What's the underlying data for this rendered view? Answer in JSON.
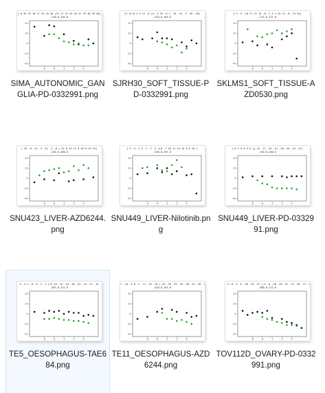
{
  "colors": {
    "black_dot": "#111111",
    "green_dot": "#2ca02c",
    "axis": "#333333",
    "grid_text": "#555555"
  },
  "files": [
    {
      "name": "SIMA_AUTONOMIC_GANGLIA-PD-0332991.png",
      "header": "[ 0 35 15 10 17 23 24 40 |31 27 22 32 43 47 35 40 35 40]",
      "subheader": "-220.0,192.0",
      "black": [
        [
          -10,
          33
        ],
        [
          -8,
          15
        ],
        [
          -7,
          36
        ],
        [
          -6,
          34
        ],
        [
          -4,
          18
        ],
        [
          -2,
          5
        ],
        [
          -1,
          -2
        ],
        [
          1,
          8
        ],
        [
          2,
          0
        ]
      ],
      "green": [
        [
          -7,
          18
        ],
        [
          -6,
          18
        ],
        [
          -5,
          10
        ],
        [
          -4,
          4
        ],
        [
          -3,
          2
        ],
        [
          -2,
          -2
        ],
        [
          -1,
          0
        ],
        [
          0,
          -4
        ],
        [
          1,
          -4
        ]
      ]
    },
    {
      "name": "SJRH30_SOFT_TISSUE-PD-0332991.png",
      "header": "[3 15 8 4 3 11 -8 ]4 -3 23 -8 1 -16 -31 -3 -35 -20]",
      "subheader": "-220.0,183.0",
      "black": [
        [
          -10,
          12
        ],
        [
          -9,
          8
        ],
        [
          -7,
          10
        ],
        [
          -6,
          22
        ],
        [
          -5,
          10
        ],
        [
          -4,
          10
        ],
        [
          -3,
          8
        ],
        [
          -1,
          2
        ],
        [
          0,
          -6
        ],
        [
          1,
          6
        ],
        [
          2,
          0
        ]
      ],
      "green": [
        [
          -6,
          4
        ],
        [
          -5,
          2
        ],
        [
          -4,
          -2
        ],
        [
          -3,
          -8
        ],
        [
          -2,
          -4
        ],
        [
          -1,
          -18
        ],
        [
          0,
          -10
        ]
      ]
    },
    {
      "name": "SKLMS1_SOFT_TISSUE-AZD0530.png",
      "header": "[ 3 -9 -10 27 11 ]5 -8 -7 5 3 15 12 -8 -13 31]",
      "subheader": "-175.0,177.0",
      "black": [
        [
          -10,
          2
        ],
        [
          -8,
          4
        ],
        [
          -7,
          -4
        ],
        [
          -5,
          -2
        ],
        [
          -4,
          -8
        ],
        [
          -2,
          8
        ],
        [
          -1,
          14
        ],
        [
          0,
          20
        ],
        [
          1,
          -30
        ]
      ],
      "green": [
        [
          -9,
          28
        ],
        [
          -7,
          14
        ],
        [
          -6,
          12
        ],
        [
          -5,
          18
        ],
        [
          -4,
          20
        ],
        [
          -3,
          26
        ],
        [
          -2,
          20
        ],
        [
          -1,
          24
        ],
        [
          0,
          28
        ]
      ]
    },
    {
      "name": "SNU423_LIVER-AZD6244.png",
      "header": "[ 22 -6 -12 -3 -51 -3 -8 |-12 0 13 11 0 16 9 13 15]",
      "subheader": "-220.0,180.0",
      "black": [
        [
          -10,
          -8
        ],
        [
          -8,
          -2
        ],
        [
          -6,
          -4
        ],
        [
          -5,
          10
        ],
        [
          -3,
          -6
        ],
        [
          -2,
          -4
        ],
        [
          0,
          -2
        ],
        [
          2,
          2
        ]
      ],
      "green": [
        [
          -9,
          6
        ],
        [
          -8,
          14
        ],
        [
          -7,
          16
        ],
        [
          -6,
          18
        ],
        [
          -5,
          20
        ],
        [
          -4,
          12
        ],
        [
          -3,
          14
        ],
        [
          -2,
          24
        ],
        [
          -1,
          16
        ],
        [
          0,
          26
        ],
        [
          1,
          20
        ]
      ]
    },
    {
      "name": "SNU449_LIVER-Nilotinib.png",
      "header": "[ 9 -4 -1 3 -7 -7 -3 |10 -7 10 11 15 15 9 6 16 ]",
      "subheader": "-220.0,187.0",
      "black": [
        [
          -10,
          8
        ],
        [
          -8,
          10
        ],
        [
          -6,
          20
        ],
        [
          -5,
          12
        ],
        [
          -4,
          20
        ],
        [
          -3,
          8
        ],
        [
          -2,
          14
        ],
        [
          0,
          6
        ],
        [
          1,
          8
        ],
        [
          2,
          -30
        ]
      ],
      "green": [
        [
          -9,
          20
        ],
        [
          -8,
          22
        ],
        [
          -6,
          26
        ],
        [
          -5,
          16
        ],
        [
          -4,
          14
        ],
        [
          -3,
          26
        ],
        [
          -2,
          36
        ],
        [
          -1,
          22
        ]
      ]
    },
    {
      "name": "SNU449_LIVER-PD-0332991.png",
      "header": "[ 8 2 5 0 3 0 ]{-12 -17 -24 -21 -26 -24 -25 -27]",
      "subheader": "-220.0,180.0",
      "black": [
        [
          -10,
          2
        ],
        [
          -8,
          4
        ],
        [
          -6,
          4
        ],
        [
          -4,
          4
        ],
        [
          -2,
          4
        ],
        [
          -1,
          2
        ],
        [
          0,
          4
        ],
        [
          1,
          4
        ],
        [
          2,
          4
        ]
      ],
      "green": [
        [
          -7,
          -4
        ],
        [
          -6,
          -10
        ],
        [
          -5,
          -12
        ],
        [
          -4,
          -18
        ],
        [
          -3,
          -20
        ],
        [
          -2,
          -20
        ],
        [
          -1,
          -20
        ],
        [
          0,
          -20
        ],
        [
          1,
          -22
        ]
      ]
    },
    {
      "name": "TE5_OESOPHAGUS-TAE684.png",
      "header": "[ 0 -3 -2 1 -8 -9 -3 -2 |13 20 -14 -14 -18 -22 -13 -17 -15 -15]",
      "subheader": "-387.0,121.0",
      "black": [
        [
          -10,
          4
        ],
        [
          -8,
          2
        ],
        [
          -7,
          6
        ],
        [
          -6,
          4
        ],
        [
          -5,
          6
        ],
        [
          -4,
          0
        ],
        [
          -3,
          4
        ],
        [
          -2,
          2
        ],
        [
          -1,
          2
        ],
        [
          0,
          -4
        ],
        [
          1,
          -2
        ],
        [
          2,
          -4
        ]
      ],
      "green": [
        [
          -8,
          -10
        ],
        [
          -7,
          -10
        ],
        [
          -6,
          -8
        ],
        [
          -5,
          -10
        ],
        [
          -4,
          -12
        ],
        [
          -3,
          -12
        ],
        [
          -2,
          -14
        ],
        [
          -1,
          -14
        ],
        [
          0,
          -16
        ],
        [
          1,
          -18
        ]
      ]
    },
    {
      "name": "TE11_OESOPHAGUS-AZD6244.png",
      "header": "[-27 -15 -3 0 -7 -11 -15 -10 |-25 -29 -32 -29 -26 -31 -28 -33]",
      "subheader": "-220.0,187.0",
      "black": [
        [
          -10,
          -10
        ],
        [
          -8,
          -6
        ],
        [
          -6,
          4
        ],
        [
          -5,
          10
        ],
        [
          -3,
          8
        ],
        [
          -2,
          4
        ],
        [
          0,
          2
        ],
        [
          1,
          -6
        ],
        [
          2,
          -4
        ]
      ],
      "green": [
        [
          -5,
          2
        ],
        [
          -4,
          -10
        ],
        [
          -3,
          -10
        ],
        [
          -2,
          -14
        ],
        [
          -1,
          -12
        ],
        [
          0,
          -16
        ],
        [
          1,
          -20
        ]
      ]
    },
    {
      "name": "TOV112D_OVARY-PD-0332991.png",
      "header": "[ 0 4 -8 -3 -6 -20 -29 -27 |-4 -6 -26 -20 -27 -27 -36 -37 -33]",
      "subheader": "-388.0,173.0",
      "black": [
        [
          -10,
          6
        ],
        [
          -9,
          -2
        ],
        [
          -8,
          2
        ],
        [
          -7,
          4
        ],
        [
          -6,
          2
        ],
        [
          -5,
          6
        ],
        [
          -4,
          -8
        ],
        [
          -2,
          -10
        ],
        [
          -1,
          -16
        ],
        [
          0,
          -18
        ],
        [
          1,
          -22
        ],
        [
          2,
          -28
        ]
      ],
      "green": [
        [
          -6,
          -6
        ],
        [
          -5,
          -10
        ],
        [
          -4,
          -12
        ],
        [
          -3,
          -16
        ],
        [
          -2,
          -18
        ],
        [
          -1,
          -22
        ],
        [
          0,
          -22
        ],
        [
          1,
          -24
        ]
      ]
    }
  ]
}
